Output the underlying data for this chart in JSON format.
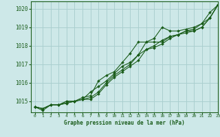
{
  "title": "Graphe pression niveau de la mer (hPa)",
  "background_color": "#cde8e8",
  "grid_color": "#aacfcf",
  "line_color": "#1a5c1a",
  "xlim": [
    -0.5,
    23
  ],
  "ylim": [
    1014.4,
    1020.4
  ],
  "yticks": [
    1015,
    1016,
    1017,
    1018,
    1019,
    1020
  ],
  "xticks": [
    0,
    1,
    2,
    3,
    4,
    5,
    6,
    7,
    8,
    9,
    10,
    11,
    12,
    13,
    14,
    15,
    16,
    17,
    18,
    19,
    20,
    21,
    22,
    23
  ],
  "series": [
    [
      1014.7,
      1014.6,
      1014.8,
      1014.8,
      1014.9,
      1015.0,
      1015.1,
      1015.1,
      1015.4,
      1015.9,
      1016.3,
      1016.6,
      1016.9,
      1017.2,
      1017.8,
      1017.9,
      1018.1,
      1018.4,
      1018.6,
      1018.8,
      1018.8,
      1019.0,
      1019.5,
      1020.2
    ],
    [
      1014.7,
      1014.6,
      1014.8,
      1014.8,
      1015.0,
      1015.0,
      1015.1,
      1015.2,
      1015.5,
      1016.0,
      1016.4,
      1016.7,
      1017.0,
      1017.5,
      1017.8,
      1018.0,
      1018.3,
      1018.5,
      1018.6,
      1018.7,
      1018.8,
      1019.0,
      1019.5,
      1020.2
    ],
    [
      1014.7,
      1014.6,
      1014.8,
      1014.8,
      1015.0,
      1015.0,
      1015.1,
      1015.5,
      1015.8,
      1016.1,
      1016.5,
      1016.9,
      1017.1,
      1017.5,
      1018.2,
      1018.2,
      1018.2,
      1018.5,
      1018.6,
      1018.8,
      1018.9,
      1019.2,
      1019.8,
      1020.2
    ],
    [
      1014.7,
      1014.5,
      1014.8,
      1014.8,
      1014.9,
      1015.0,
      1015.2,
      1015.3,
      1016.1,
      1016.4,
      1016.6,
      1017.1,
      1017.6,
      1018.2,
      1018.2,
      1018.4,
      1019.0,
      1018.8,
      1018.8,
      1018.9,
      1019.0,
      1019.2,
      1019.5,
      1020.2
    ]
  ]
}
